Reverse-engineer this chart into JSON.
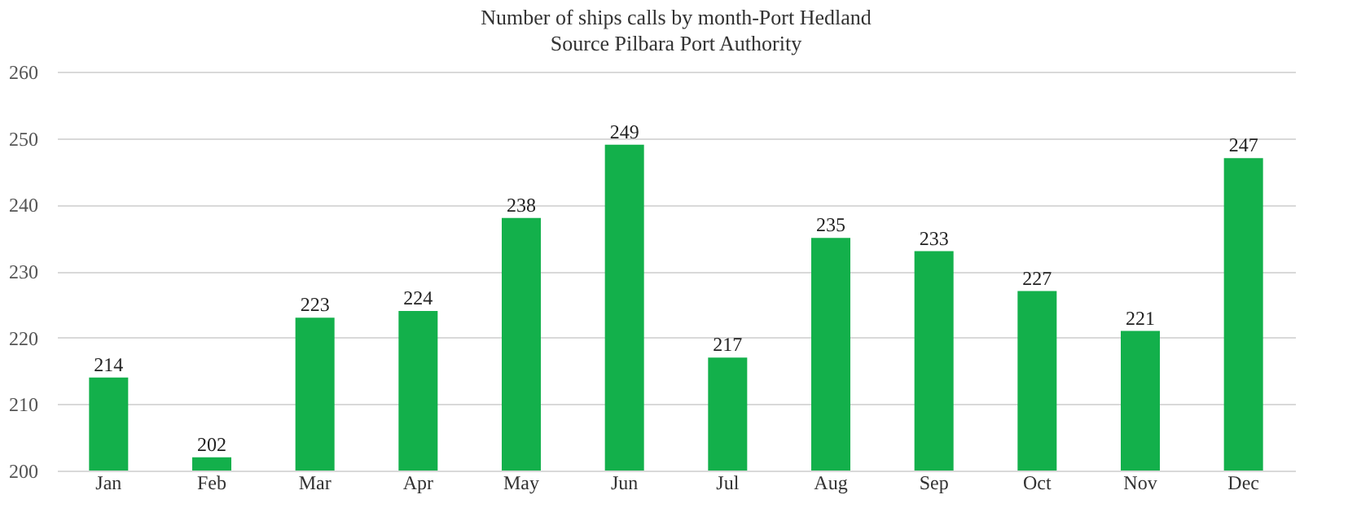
{
  "chart_data": {
    "type": "bar",
    "title": "Number of ships calls by month-Port Hedland",
    "subtitle": "Source Pilbara Port Authority",
    "categories": [
      "Jan",
      "Feb",
      "Mar",
      "Apr",
      "May",
      "Jun",
      "Jul",
      "Aug",
      "Sep",
      "Oct",
      "Nov",
      "Dec"
    ],
    "values": [
      214,
      202,
      223,
      224,
      238,
      249,
      217,
      235,
      233,
      227,
      221,
      247
    ],
    "color": "#13b04b",
    "ylim": [
      200,
      260
    ],
    "yticks": [
      200,
      210,
      220,
      230,
      240,
      250,
      260
    ],
    "grid": "y",
    "data_labels": true
  }
}
